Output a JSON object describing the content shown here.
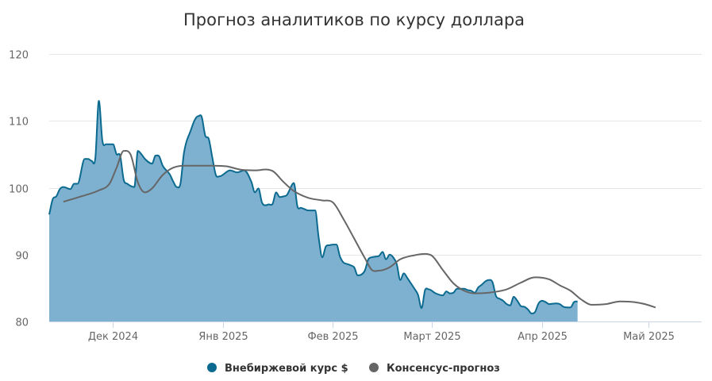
{
  "chart_data": {
    "type": "area",
    "title": "Прогноз аналитиков по курсу доллара",
    "xlabel": "",
    "ylabel": "",
    "ylim": [
      80,
      120
    ],
    "yticks": [
      80,
      90,
      100,
      110,
      120
    ],
    "xlim": [
      "2024-11-13",
      "2025-05-16"
    ],
    "xticks": [
      {
        "date": "2024-12-01",
        "label": "Дек 2024"
      },
      {
        "date": "2025-01-01",
        "label": "Янв 2025"
      },
      {
        "date": "2025-02-01",
        "label": "Фев 2025"
      },
      {
        "date": "2025-03-01",
        "label": "Март 2025"
      },
      {
        "date": "2025-04-01",
        "label": "Апр 2025"
      },
      {
        "date": "2025-05-01",
        "label": "Май 2025"
      }
    ],
    "grid": true,
    "legend_position": "bottom-center",
    "series": [
      {
        "name": "Внебиржевой курс $",
        "kind": "area",
        "color": "#0b6a8f",
        "fill": "#7eb0cf",
        "points": [
          [
            "2024-11-13",
            96
          ],
          [
            "2024-11-14",
            98.3
          ],
          [
            "2024-11-15",
            98.7
          ],
          [
            "2024-11-16",
            99.8
          ],
          [
            "2024-11-17",
            100.1
          ],
          [
            "2024-11-19",
            99.8
          ],
          [
            "2024-11-20",
            100.6
          ],
          [
            "2024-11-21",
            100.6
          ],
          [
            "2024-11-23",
            104.3
          ],
          [
            "2024-11-24",
            104.3
          ],
          [
            "2024-11-25",
            104.0
          ],
          [
            "2024-11-26",
            104.4
          ],
          [
            "2024-11-27",
            113.0
          ],
          [
            "2024-11-28",
            107.0
          ],
          [
            "2024-11-29",
            106.5
          ],
          [
            "2024-12-01",
            106.5
          ],
          [
            "2024-12-02",
            105.0
          ],
          [
            "2024-12-03",
            104.8
          ],
          [
            "2024-12-04",
            101.2
          ],
          [
            "2024-12-05",
            100.6
          ],
          [
            "2024-12-07",
            100.1
          ],
          [
            "2024-12-08",
            105.5
          ],
          [
            "2024-12-09",
            105.0
          ],
          [
            "2024-12-10",
            104.3
          ],
          [
            "2024-12-12",
            103.6
          ],
          [
            "2024-12-13",
            104.8
          ],
          [
            "2024-12-14",
            104.7
          ],
          [
            "2024-12-15",
            103.3
          ],
          [
            "2024-12-17",
            102.0
          ],
          [
            "2024-12-18",
            100.9
          ],
          [
            "2024-12-19",
            100.1
          ],
          [
            "2024-12-20",
            100.6
          ],
          [
            "2024-12-21",
            105.2
          ],
          [
            "2024-12-23",
            108.7
          ],
          [
            "2024-12-24",
            110.1
          ],
          [
            "2024-12-25",
            110.7
          ],
          [
            "2024-12-26",
            110.6
          ],
          [
            "2024-12-27",
            107.8
          ],
          [
            "2024-12-28",
            107.3
          ],
          [
            "2024-12-29",
            104.5
          ],
          [
            "2024-12-30",
            101.9
          ],
          [
            "2024-12-31",
            101.7
          ],
          [
            "2025-01-03",
            102.6
          ],
          [
            "2025-01-05",
            102.3
          ],
          [
            "2025-01-07",
            102.6
          ],
          [
            "2025-01-09",
            100.9
          ],
          [
            "2025-01-10",
            99.3
          ],
          [
            "2025-01-11",
            99.9
          ],
          [
            "2025-01-12",
            97.8
          ],
          [
            "2025-01-14",
            97.5
          ],
          [
            "2025-01-15",
            97.6
          ],
          [
            "2025-01-16",
            99.3
          ],
          [
            "2025-01-17",
            98.6
          ],
          [
            "2025-01-18",
            98.7
          ],
          [
            "2025-01-19",
            98.9
          ],
          [
            "2025-01-21",
            100.7
          ],
          [
            "2025-01-22",
            97.2
          ],
          [
            "2025-01-23",
            97.0
          ],
          [
            "2025-01-24",
            96.8
          ],
          [
            "2025-01-25",
            96.6
          ],
          [
            "2025-01-27",
            96.6
          ],
          [
            "2025-01-28",
            92.5
          ],
          [
            "2025-01-29",
            89.6
          ],
          [
            "2025-01-30",
            91.2
          ],
          [
            "2025-01-31",
            91.4
          ],
          [
            "2025-02-01",
            91.5
          ],
          [
            "2025-02-02",
            91.5
          ],
          [
            "2025-02-03",
            89.7
          ],
          [
            "2025-02-04",
            88.8
          ],
          [
            "2025-02-05",
            88.6
          ],
          [
            "2025-02-06",
            88.4
          ],
          [
            "2025-02-07",
            88.1
          ],
          [
            "2025-02-08",
            86.9
          ],
          [
            "2025-02-09",
            87.0
          ],
          [
            "2025-02-10",
            87.6
          ],
          [
            "2025-02-11",
            89.3
          ],
          [
            "2025-02-12",
            89.6
          ],
          [
            "2025-02-13",
            89.7
          ],
          [
            "2025-02-14",
            89.8
          ],
          [
            "2025-02-15",
            90.4
          ],
          [
            "2025-02-16",
            89.3
          ],
          [
            "2025-02-17",
            90.0
          ],
          [
            "2025-02-18",
            89.6
          ],
          [
            "2025-02-19",
            88.6
          ],
          [
            "2025-02-20",
            86.2
          ],
          [
            "2025-02-21",
            87.2
          ],
          [
            "2025-02-22",
            86.5
          ],
          [
            "2025-02-23",
            85.7
          ],
          [
            "2025-02-24",
            84.9
          ],
          [
            "2025-02-25",
            84.0
          ],
          [
            "2025-02-26",
            82.0
          ],
          [
            "2025-02-27",
            84.7
          ],
          [
            "2025-02-28",
            84.8
          ],
          [
            "2025-03-02",
            84.2
          ],
          [
            "2025-03-04",
            83.9
          ],
          [
            "2025-03-05",
            84.5
          ],
          [
            "2025-03-06",
            84.2
          ],
          [
            "2025-03-07",
            84.3
          ],
          [
            "2025-03-08",
            84.9
          ],
          [
            "2025-03-10",
            84.9
          ],
          [
            "2025-03-11",
            84.7
          ],
          [
            "2025-03-12",
            84.6
          ],
          [
            "2025-03-13",
            84.3
          ],
          [
            "2025-03-14",
            85.1
          ],
          [
            "2025-03-15",
            85.5
          ],
          [
            "2025-03-16",
            86.0
          ],
          [
            "2025-03-17",
            86.2
          ],
          [
            "2025-03-18",
            85.9
          ],
          [
            "2025-03-19",
            83.8
          ],
          [
            "2025-03-20",
            83.4
          ],
          [
            "2025-03-21",
            83.1
          ],
          [
            "2025-03-22",
            82.6
          ],
          [
            "2025-03-23",
            82.4
          ],
          [
            "2025-03-24",
            83.7
          ],
          [
            "2025-03-25",
            83.1
          ],
          [
            "2025-03-26",
            82.3
          ],
          [
            "2025-03-27",
            82.2
          ],
          [
            "2025-03-28",
            81.8
          ],
          [
            "2025-03-29",
            81.2
          ],
          [
            "2025-03-30",
            81.4
          ],
          [
            "2025-03-31",
            82.7
          ],
          [
            "2025-04-01",
            83.1
          ],
          [
            "2025-04-02",
            82.9
          ],
          [
            "2025-04-03",
            82.6
          ],
          [
            "2025-04-05",
            82.7
          ],
          [
            "2025-04-06",
            82.6
          ],
          [
            "2025-04-07",
            82.2
          ],
          [
            "2025-04-09",
            82.1
          ],
          [
            "2025-04-10",
            82.9
          ],
          [
            "2025-04-11",
            83.0
          ]
        ]
      },
      {
        "name": "Консенсус-прогноз",
        "kind": "line",
        "color": "#666666",
        "points": [
          [
            "2024-11-17",
            97.9
          ],
          [
            "2024-11-22",
            98.7
          ],
          [
            "2024-11-27",
            99.6
          ],
          [
            "2024-11-30",
            100.6
          ],
          [
            "2024-12-02",
            103.0
          ],
          [
            "2024-12-04",
            105.5
          ],
          [
            "2024-12-06",
            104.9
          ],
          [
            "2024-12-08",
            100.8
          ],
          [
            "2024-12-10",
            99.3
          ],
          [
            "2024-12-12",
            99.9
          ],
          [
            "2024-12-15",
            101.9
          ],
          [
            "2024-12-18",
            103.0
          ],
          [
            "2024-12-22",
            103.3
          ],
          [
            "2024-12-29",
            103.3
          ],
          [
            "2025-01-02",
            103.2
          ],
          [
            "2025-01-06",
            102.7
          ],
          [
            "2025-01-10",
            102.6
          ],
          [
            "2025-01-15",
            102.5
          ],
          [
            "2025-01-18",
            100.9
          ],
          [
            "2025-01-21",
            99.5
          ],
          [
            "2025-01-25",
            98.5
          ],
          [
            "2025-01-29",
            98.1
          ],
          [
            "2025-02-01",
            97.8
          ],
          [
            "2025-02-04",
            95.3
          ],
          [
            "2025-02-07",
            92.4
          ],
          [
            "2025-02-10",
            89.5
          ],
          [
            "2025-02-12",
            87.7
          ],
          [
            "2025-02-14",
            87.6
          ],
          [
            "2025-02-17",
            88.1
          ],
          [
            "2025-02-20",
            89.3
          ],
          [
            "2025-02-24",
            89.9
          ],
          [
            "2025-02-27",
            90.1
          ],
          [
            "2025-03-01",
            89.8
          ],
          [
            "2025-03-04",
            87.7
          ],
          [
            "2025-03-07",
            85.7
          ],
          [
            "2025-03-10",
            84.6
          ],
          [
            "2025-03-13",
            84.2
          ],
          [
            "2025-03-17",
            84.3
          ],
          [
            "2025-03-22",
            84.8
          ],
          [
            "2025-03-26",
            85.8
          ],
          [
            "2025-03-30",
            86.6
          ],
          [
            "2025-04-03",
            86.3
          ],
          [
            "2025-04-06",
            85.4
          ],
          [
            "2025-04-09",
            84.6
          ],
          [
            "2025-04-12",
            83.3
          ],
          [
            "2025-04-15",
            82.5
          ],
          [
            "2025-04-19",
            82.6
          ],
          [
            "2025-04-23",
            83.0
          ],
          [
            "2025-04-27",
            82.9
          ],
          [
            "2025-04-30",
            82.6
          ],
          [
            "2025-05-03",
            82.1
          ]
        ]
      }
    ]
  }
}
